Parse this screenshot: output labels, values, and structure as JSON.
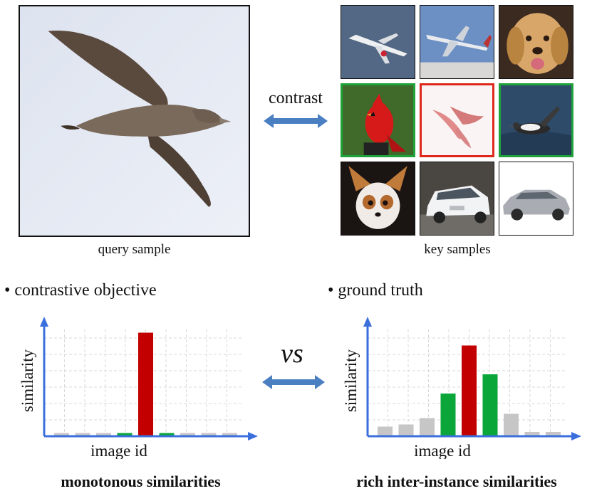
{
  "query_caption": "query sample",
  "key_caption": "key samples",
  "contrast_label": "contrast",
  "vs_label": "vs",
  "left_panel": {
    "bullet": "• contrastive objective",
    "caption": "monotonous similarities"
  },
  "right_panel": {
    "bullet": "• ground truth",
    "caption": "rich inter-instance similarities"
  },
  "colors": {
    "positive_border": "#e0271c",
    "similar_border": "#1fa23a",
    "neutral_border": "#111111",
    "arrow": "#4a7fc1",
    "axis": "#3b6fdc",
    "bar_gray": "#c6c6c6",
    "bar_red": "#c20000",
    "bar_green": "#0aa63a"
  },
  "key_tiles": [
    {
      "name": "airplane-1",
      "border": "neutral"
    },
    {
      "name": "airplane-2",
      "border": "neutral"
    },
    {
      "name": "dog-golden",
      "border": "neutral"
    },
    {
      "name": "cardinal-bird",
      "border": "similar"
    },
    {
      "name": "albatross-positive",
      "border": "positive"
    },
    {
      "name": "bird-water",
      "border": "similar"
    },
    {
      "name": "chihuahua-dog",
      "border": "neutral"
    },
    {
      "name": "white-car",
      "border": "neutral"
    },
    {
      "name": "silver-car",
      "border": "neutral"
    }
  ],
  "chart_data": [
    {
      "type": "bar",
      "title": "",
      "xlabel": "image id",
      "ylabel": "similarity",
      "ylim": [
        0,
        1
      ],
      "grid": true,
      "values": [
        0.03,
        0.03,
        0.03,
        0.03,
        0.97,
        0.03,
        0.03,
        0.03,
        0.03
      ],
      "bar_colors": [
        "gray",
        "gray",
        "gray",
        "green",
        "red",
        "green",
        "gray",
        "gray",
        "gray"
      ]
    },
    {
      "type": "bar",
      "title": "",
      "xlabel": "image id",
      "ylabel": "similarity",
      "ylim": [
        0,
        1
      ],
      "grid": true,
      "values": [
        0.09,
        0.11,
        0.17,
        0.4,
        0.85,
        0.58,
        0.21,
        0.04,
        0.04
      ],
      "bar_colors": [
        "gray",
        "gray",
        "gray",
        "green",
        "red",
        "green",
        "gray",
        "gray",
        "gray"
      ]
    }
  ]
}
